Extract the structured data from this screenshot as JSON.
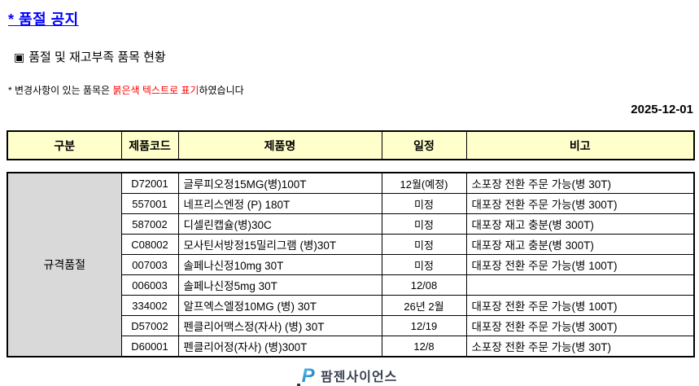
{
  "page": {
    "title": "* 품절 공지",
    "bullet_icon": "▣",
    "subtitle": "품절 및 재고부족 품목 현황",
    "note_prefix": "* 변경사항이 있는 품목은 ",
    "note_red": "붉은색 텍스트로 표기",
    "note_suffix": "하였습니다",
    "date": "2025-12-01"
  },
  "table": {
    "headers": [
      "구분",
      "제품코드",
      "제품명",
      "일정",
      "비고"
    ],
    "group_label": "규격품절",
    "rows": [
      {
        "code": "D72001",
        "name": "글루피오정15MG(병)100T",
        "schedule": "12월(예정)",
        "note": "소포장 전환 주문 가능(병 30T)"
      },
      {
        "code": "557001",
        "name": "네프리스엔정 (P) 180T",
        "schedule": "미정",
        "note": "대포장 전환 주문 가능(병 300T)"
      },
      {
        "code": "587002",
        "name": "디셀린캡슐(병)30C",
        "schedule": "미정",
        "note": "대포장 재고 충분(병 300T)"
      },
      {
        "code": "C08002",
        "name": "모사틴서방정15밀리그램 (병)30T",
        "schedule": "미정",
        "note": "대포장 재고 충분(병 300T)"
      },
      {
        "code": "007003",
        "name": "솔페나신정10mg 30T",
        "schedule": "미정",
        "note": "대포장 전환 주문 가능(병 100T)"
      },
      {
        "code": "006003",
        "name": "솔페나신정5mg 30T",
        "schedule": "12/08",
        "note": ""
      },
      {
        "code": "334002",
        "name": "알프엑스엘정10MG (병) 30T",
        "schedule": "26년 2월",
        "note": "대포장 전환 주문 가능(병 100T)"
      },
      {
        "code": "D57002",
        "name": "펜클리어맥스정(자사) (병) 30T",
        "schedule": "12/19",
        "note": "대포장 전환 주문 가능(병 300T)"
      },
      {
        "code": "D60001",
        "name": "펜클리어정(자사) (병)300T",
        "schedule": "12/8",
        "note": "소포장 전환 주문 가능(병 30T)"
      }
    ]
  },
  "footer": {
    "logo_letter": "P",
    "company": "팜젠사이언스"
  },
  "colors": {
    "title_blue": "#0000ff",
    "note_red": "#ff0000",
    "header_bg": "#ffffcc",
    "group_bg": "#d9d9d9",
    "border": "#000000",
    "logo_blue": "#2a8fd0",
    "company_text": "#3a4050"
  }
}
